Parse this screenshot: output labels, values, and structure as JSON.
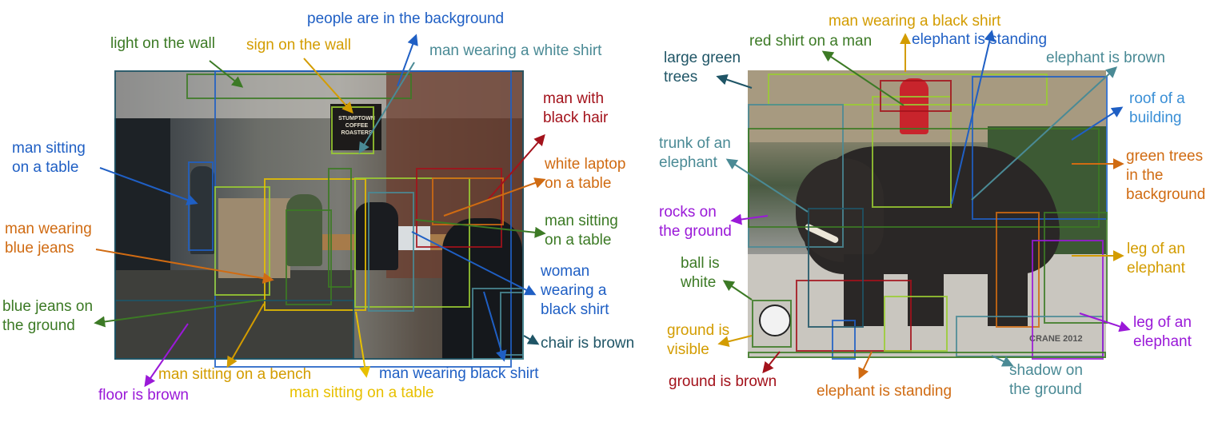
{
  "left": {
    "labels": {
      "people_background": "people are in the background",
      "light_wall": "light on the wall",
      "sign_wall": "sign on the wall",
      "man_white_shirt": "man wearing a white shirt",
      "man_black_hair": "man with\nblack hair",
      "man_sitting_table_1": "man sitting\non a table",
      "white_laptop": "white laptop\non a table",
      "man_blue_jeans": "man wearing\nblue jeans",
      "man_sitting_table_2": "man sitting\non a table",
      "woman_black_shirt": "woman\nwearing a\nblack shirt",
      "blue_jeans_ground": "blue jeans on\nthe ground",
      "chair_brown": "chair is brown",
      "man_bench": "man sitting on a bench",
      "floor_brown": "floor is brown",
      "man_sitting_table_3": "man sitting on a table",
      "man_black_shirt": "man wearing black shirt"
    },
    "photo_sign": "STUMPTOWN\nCOFFEE ROASTERS"
  },
  "right": {
    "labels": {
      "man_black_shirt": "man wearing a black shirt",
      "red_shirt": "red shirt on a man",
      "elephant_standing_top": "elephant is standing",
      "large_green_trees": "large green\ntrees",
      "elephant_brown": "elephant is brown",
      "roof_building": "roof of a\nbuilding",
      "trunk_elephant": "trunk of an\nelephant",
      "green_trees_bg": "green trees\nin the\nbackground",
      "rocks_ground": "rocks on\nthe ground",
      "leg_elephant_1": "leg of an\nelephant",
      "ball_white": "ball is\nwhite",
      "leg_elephant_2": "leg of an\nelephant",
      "ground_visible": "ground is\nvisible",
      "ground_brown": "ground is brown",
      "elephant_standing_bottom": "elephant is standing",
      "shadow_ground": "shadow on\nthe ground"
    },
    "watermark": "CRANE 2012"
  },
  "colors": {
    "blue": "#1f5fc4",
    "green": "#3c7a25",
    "gold": "#d39c00",
    "teal": "#4a8a95",
    "red": "#a3121b",
    "orange": "#d06b12",
    "purple": "#9a19d8",
    "navy": "#1f5566",
    "lime": "#9acd32",
    "yellow": "#e8c000"
  }
}
